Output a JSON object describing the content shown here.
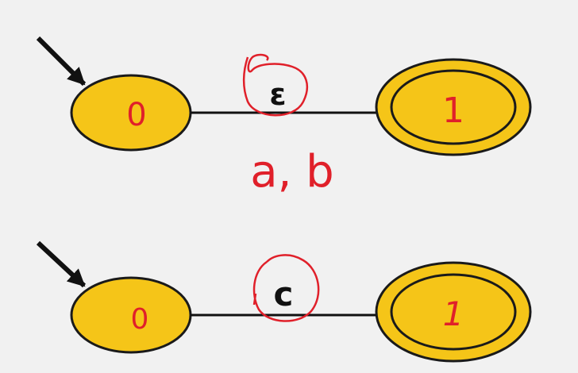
{
  "colors": {
    "background": "#f1f1f1",
    "state_fill": "#f5c518",
    "state_stroke": "#1a1a1a",
    "annotation_red": "#e0202a",
    "edge": "#111111"
  },
  "automaton_1": {
    "start_state_label": "0",
    "accept_state_label": "1",
    "transition_symbol": "ε",
    "handwritten_note": "a, b"
  },
  "automaton_2": {
    "start_state_label": "0",
    "accept_state_label": "1",
    "transition_symbol": "c"
  }
}
